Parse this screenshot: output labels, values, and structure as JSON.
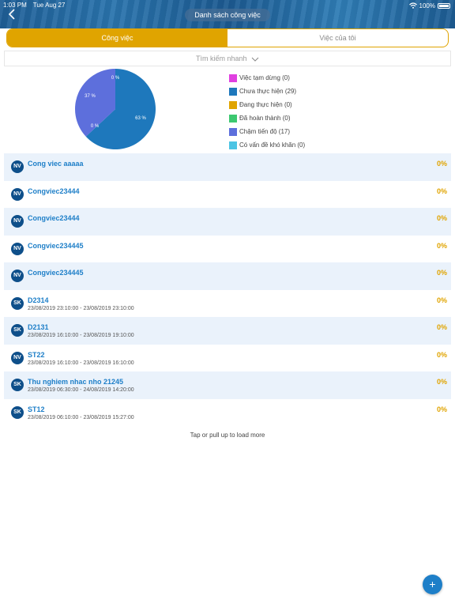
{
  "status_bar": {
    "time": "1:03 PM",
    "date": "Tue Aug 27",
    "battery": "100%"
  },
  "header": {
    "title": "Danh sách công việc",
    "back_icon": "chevron-left-icon"
  },
  "tabs": [
    {
      "label": "Công việc",
      "active": true
    },
    {
      "label": "Việc của tôi",
      "active": false
    }
  ],
  "search": {
    "label": "Tìm kiếm nhanh",
    "icon": "chevron-down-icon"
  },
  "chart_data": {
    "type": "pie",
    "slices": [
      {
        "label": "Việc tạm dừng (0)",
        "value": 0,
        "color": "#e040e0"
      },
      {
        "label": "Chưa thực hiện (29)",
        "value": 29,
        "color": "#1e78bc"
      },
      {
        "label": "Đang thực hiện (0)",
        "value": 0,
        "color": "#e0a400"
      },
      {
        "label": "Đã hoàn thành (0)",
        "value": 0,
        "color": "#3cc870"
      },
      {
        "label": "Chậm tiến độ (17)",
        "value": 17,
        "color": "#5d6fdc"
      },
      {
        "label": "Có vấn đề khó khăn (0)",
        "value": 0,
        "color": "#4cc4e4"
      }
    ],
    "slice_labels": [
      "0 %",
      "63 %",
      "0 %",
      "37 %"
    ]
  },
  "tasks": [
    {
      "badge": "NV",
      "title": "Cong viec aaaaa",
      "date": "",
      "percent": "0%"
    },
    {
      "badge": "NV",
      "title": "Congviec23444",
      "date": "",
      "percent": "0%"
    },
    {
      "badge": "NV",
      "title": "Congviec23444",
      "date": "",
      "percent": "0%"
    },
    {
      "badge": "NV",
      "title": "Congviec234445",
      "date": "",
      "percent": "0%"
    },
    {
      "badge": "NV",
      "title": "Congviec234445",
      "date": "",
      "percent": "0%"
    },
    {
      "badge": "SK",
      "title": "D2314",
      "date": "23/08/2019 23:10:00 - 23/08/2019 23:10:00",
      "percent": "0%"
    },
    {
      "badge": "SK",
      "title": "D2131",
      "date": "23/08/2019 16:10:00 - 23/08/2019 19:10:00",
      "percent": "0%"
    },
    {
      "badge": "NV",
      "title": "ST22",
      "date": "23/08/2019 16:10:00 - 23/08/2019 16:10:00",
      "percent": "0%"
    },
    {
      "badge": "SK",
      "title": "Thu nghiem nhac nho 21245",
      "date": "23/08/2019 06:30:00 - 24/08/2019 14:20:00",
      "percent": "0%"
    },
    {
      "badge": "SK",
      "title": "ST12",
      "date": "23/08/2019 06:10:00 - 23/08/2019 15:27:00",
      "percent": "0%"
    }
  ],
  "load_more": "Tap or pull up to load more",
  "fab": {
    "label": "+",
    "icon": "plus-icon"
  }
}
